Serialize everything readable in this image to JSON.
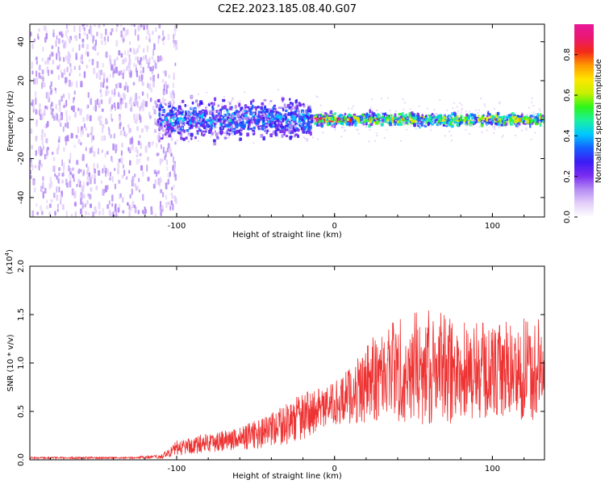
{
  "title": "C2E2.2023.185.08.40.G07",
  "colors": {
    "snr_line": "#ee3333",
    "spectral_cmap": [
      "#ffffff",
      "#e3cff9",
      "#b48bf3",
      "#7a2cf0",
      "#3b1cf4",
      "#1560ff",
      "#00c8ff",
      "#19f0a0",
      "#2ef51a",
      "#c8f000",
      "#ffe600",
      "#ff9a00",
      "#f32a18",
      "#ea1870",
      "#e8189a"
    ]
  },
  "chart_data": [
    {
      "type": "heatmap",
      "xlabel": "Height of straight line (km)",
      "ylabel": "Frequency (Hz)",
      "xlim": [
        -193,
        133
      ],
      "ylim": [
        -50,
        49
      ],
      "x_ticks": [
        -100,
        0,
        100
      ],
      "x_tick_labels": [
        "-100",
        "0",
        "100"
      ],
      "y_ticks": [
        -40,
        -20,
        0,
        20,
        40
      ],
      "y_tick_labels": [
        "-40",
        "-20",
        "0",
        "20",
        "40"
      ],
      "grid": false,
      "colorbar": {
        "label": "Normalized spectral amplitude",
        "range": [
          0.0,
          0.95
        ],
        "ticks": [
          0.0,
          0.2,
          0.4,
          0.6,
          0.8
        ],
        "tick_labels": [
          "0.0",
          "0.2",
          "0.4",
          "0.6",
          "0.8"
        ]
      },
      "regions": [
        {
          "x_from": -193,
          "x_to": -100,
          "freq_halfwidth": 50,
          "amplitude": 0.12,
          "description": "broadband noise"
        },
        {
          "x_from": -112,
          "x_to": -15,
          "freq_halfwidth": 12,
          "amplitude": 0.35
        },
        {
          "x_from": -15,
          "x_to": 133,
          "freq_halfwidth": 4,
          "amplitude": 0.6
        },
        {
          "x_from": -12,
          "x_to": 10,
          "freq_halfwidth": 1,
          "amplitude": 0.9
        }
      ]
    },
    {
      "type": "line",
      "xlabel": "Height of straight line (km)",
      "ylabel": "SNR (10 * v/v)",
      "y_multiplier_label": "(x10",
      "y_multiplier_exp": "4",
      "y_multiplier_close": ")",
      "xlim": [
        -193,
        133
      ],
      "ylim": [
        0.0,
        2.0
      ],
      "x_ticks": [
        -100,
        0,
        100
      ],
      "x_tick_labels": [
        "-100",
        "0",
        "100"
      ],
      "y_ticks": [
        0.0,
        0.5,
        1.0,
        1.5,
        2.0
      ],
      "y_tick_labels": [
        "0.0",
        "0.5",
        "1.0",
        "1.5",
        "2.0"
      ],
      "grid": false,
      "series": [
        {
          "x": [
            -193,
            -160,
            -130,
            -110,
            -100,
            -80,
            -60,
            -40,
            -20,
            -5,
            5,
            15,
            25,
            40,
            60,
            80,
            100,
            133
          ],
          "y": [
            0.02,
            0.02,
            0.02,
            0.03,
            0.12,
            0.18,
            0.22,
            0.3,
            0.45,
            0.55,
            0.62,
            0.72,
            0.85,
            0.95,
            0.95,
            0.92,
            0.9,
            0.95
          ],
          "spread": [
            0.01,
            0.01,
            0.01,
            0.02,
            0.08,
            0.1,
            0.12,
            0.18,
            0.25,
            0.2,
            0.25,
            0.35,
            0.45,
            0.55,
            0.6,
            0.55,
            0.5,
            0.55
          ]
        }
      ]
    }
  ]
}
